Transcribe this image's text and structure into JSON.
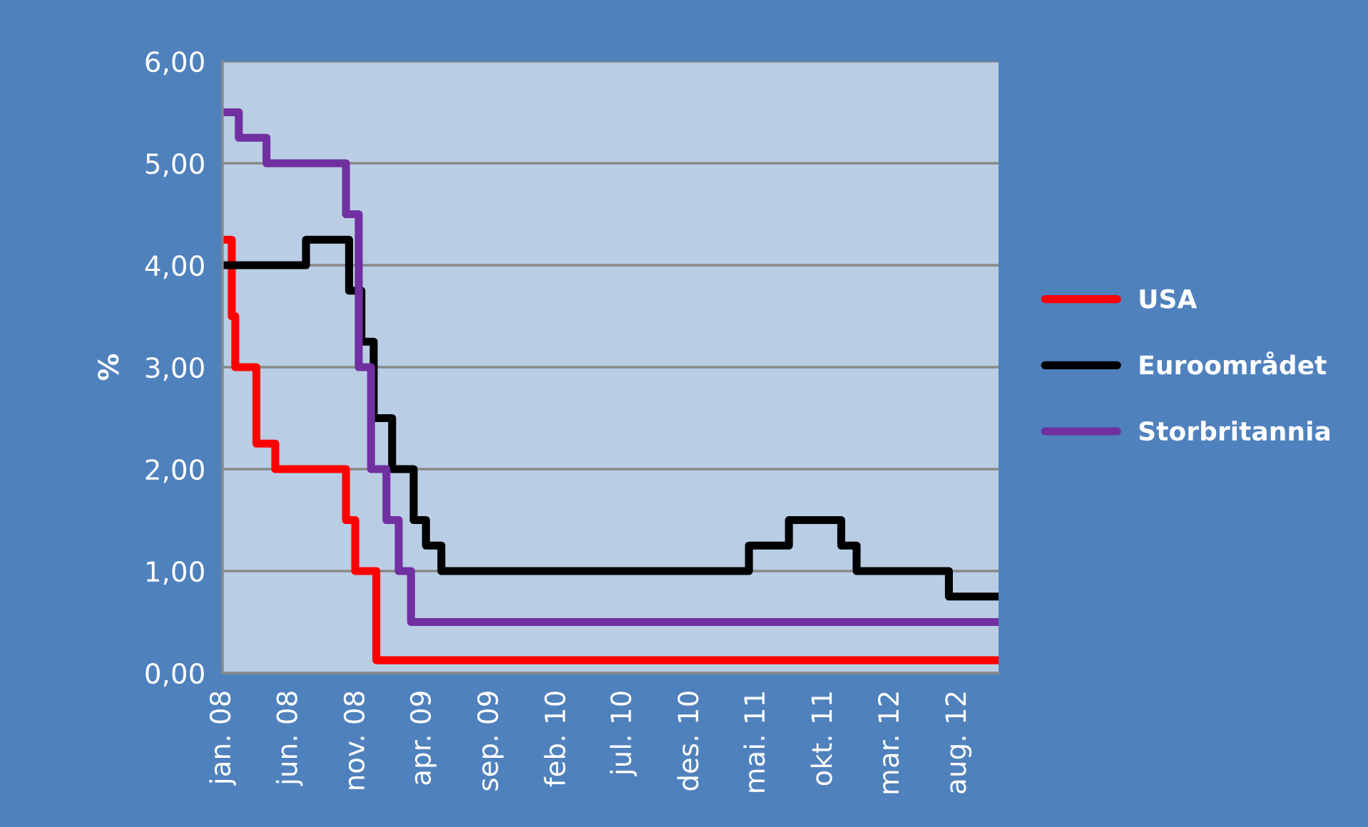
{
  "chart_data": {
    "type": "step",
    "ylabel": "%",
    "series": [
      {
        "name": "USA",
        "color": "#ff0000",
        "x": [
          "2008-01-01",
          "2008-01-22",
          "2008-01-30",
          "2008-03-18",
          "2008-04-30",
          "2008-10-08",
          "2008-10-29",
          "2008-12-16",
          "2012-11-01"
        ],
        "values": [
          4.25,
          3.5,
          3.0,
          2.25,
          2.0,
          1.5,
          1.0,
          0.125,
          0.125
        ]
      },
      {
        "name": "Euroområdet",
        "color": "#000000",
        "x": [
          "2008-01-01",
          "2008-07-09",
          "2008-10-15",
          "2008-11-12",
          "2008-12-10",
          "2009-01-21",
          "2009-03-11",
          "2009-04-08",
          "2009-05-13",
          "2011-04-13",
          "2011-07-13",
          "2011-11-09",
          "2011-12-14",
          "2012-07-11",
          "2012-11-01"
        ],
        "values": [
          4.0,
          4.25,
          3.75,
          3.25,
          2.5,
          2.0,
          1.5,
          1.25,
          1.0,
          1.25,
          1.5,
          1.25,
          1.0,
          0.75,
          0.75
        ]
      },
      {
        "name": "Storbritannia",
        "color": "#7030a0",
        "x": [
          "2008-01-01",
          "2008-02-07",
          "2008-04-10",
          "2008-10-08",
          "2008-11-06",
          "2008-12-04",
          "2009-01-08",
          "2009-02-05",
          "2009-03-05",
          "2012-11-01"
        ],
        "values": [
          5.5,
          5.25,
          5.0,
          4.5,
          3.0,
          2.0,
          1.5,
          1.0,
          0.5,
          0.5
        ]
      }
    ],
    "xlim": [
      "2008-01-01",
      "2012-11-01"
    ],
    "xticks": [
      {
        "value": "2008-01-01",
        "label": "jan. 08"
      },
      {
        "value": "2008-06-01",
        "label": "jun. 08"
      },
      {
        "value": "2008-11-01",
        "label": "nov. 08"
      },
      {
        "value": "2009-04-01",
        "label": "apr. 09"
      },
      {
        "value": "2009-09-01",
        "label": "sep. 09"
      },
      {
        "value": "2010-02-01",
        "label": "feb. 10"
      },
      {
        "value": "2010-07-01",
        "label": "jul. 10"
      },
      {
        "value": "2010-12-01",
        "label": "des. 10"
      },
      {
        "value": "2011-05-01",
        "label": "mai. 11"
      },
      {
        "value": "2011-10-01",
        "label": "okt. 11"
      },
      {
        "value": "2012-03-01",
        "label": "mar. 12"
      },
      {
        "value": "2012-08-01",
        "label": "aug. 12"
      }
    ],
    "ylim": [
      0,
      6
    ],
    "yticks": [
      {
        "value": 0,
        "label": "0,00"
      },
      {
        "value": 1,
        "label": "1,00"
      },
      {
        "value": 2,
        "label": "2,00"
      },
      {
        "value": 3,
        "label": "3,00"
      },
      {
        "value": 4,
        "label": "4,00"
      },
      {
        "value": 5,
        "label": "5,00"
      },
      {
        "value": 6,
        "label": "6,00"
      }
    ],
    "grid": "y",
    "legend": "right",
    "line_style": "solid",
    "marker": "none"
  }
}
